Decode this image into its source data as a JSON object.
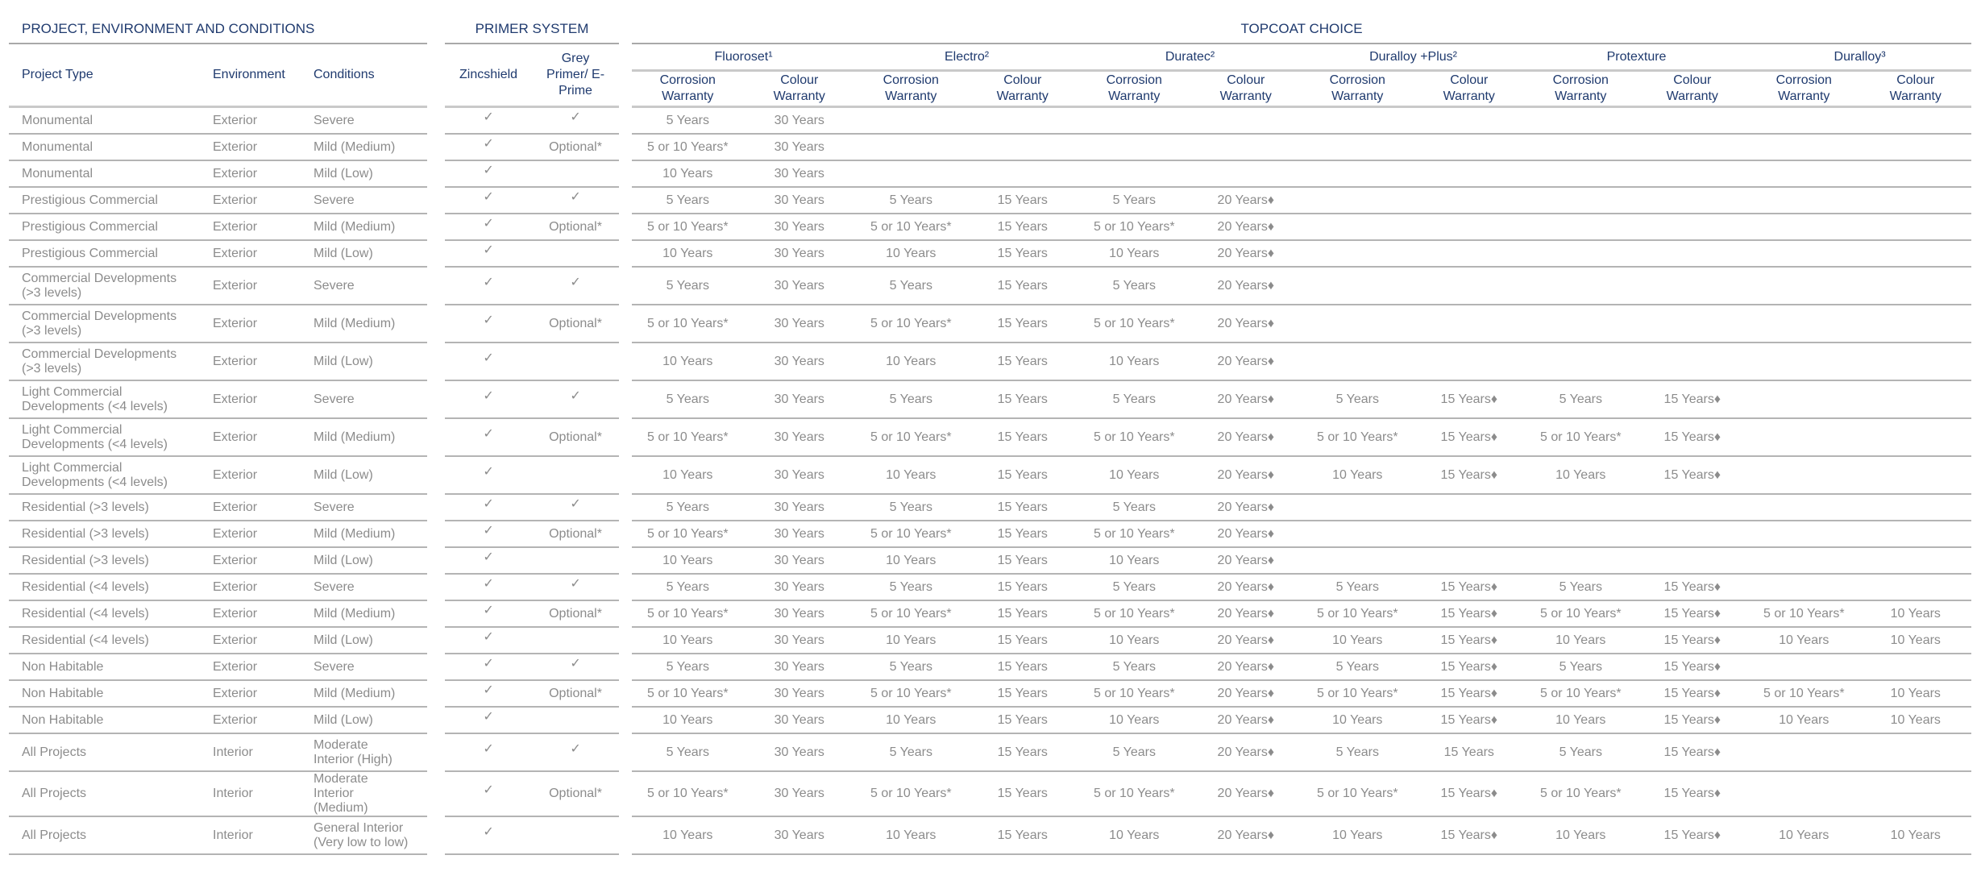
{
  "groups": {
    "project": "PROJECT, ENVIRONMENT AND CONDITIONS",
    "primer": "PRIMER SYSTEM",
    "topcoat": "TOPCOAT CHOICE"
  },
  "headers": {
    "project_type": "Project Type",
    "environment": "Environment",
    "conditions": "Conditions",
    "zincshield": "Zincshield",
    "grey_primer": "Grey Primer/ E-Prime",
    "corrosion": "Corrosion Warranty",
    "colour": "Colour Warranty"
  },
  "products": [
    "Fluoroset¹",
    "Electro²",
    "Duratec²",
    "Duralloy +Plus²",
    "Protexture",
    "Duralloy³"
  ],
  "colors": {
    "header": "#1f3a6e",
    "body": "#8c8c8c",
    "rule": "#b4b4b4"
  },
  "rows": [
    {
      "lines": 1,
      "cells": [
        "Monumental",
        "Exterior",
        "Severe",
        "✓",
        "✓",
        "5 Years",
        "30 Years",
        "",
        "",
        "",
        "",
        "",
        "",
        "",
        "",
        "",
        ""
      ]
    },
    {
      "lines": 1,
      "cells": [
        "Monumental",
        "Exterior",
        "Mild (Medium)",
        "✓",
        "Optional*",
        "5 or 10 Years*",
        "30 Years",
        "",
        "",
        "",
        "",
        "",
        "",
        "",
        "",
        "",
        ""
      ]
    },
    {
      "lines": 1,
      "cells": [
        "Monumental",
        "Exterior",
        "Mild (Low)",
        "✓",
        "",
        "10 Years",
        "30 Years",
        "",
        "",
        "",
        "",
        "",
        "",
        "",
        "",
        "",
        ""
      ]
    },
    {
      "lines": 1,
      "cells": [
        "Prestigious Commercial",
        "Exterior",
        "Severe",
        "✓",
        "✓",
        "5 Years",
        "30 Years",
        "5 Years",
        "15 Years",
        "5 Years",
        "20 Years♦",
        "",
        "",
        "",
        "",
        "",
        ""
      ]
    },
    {
      "lines": 1,
      "cells": [
        "Prestigious Commercial",
        "Exterior",
        "Mild (Medium)",
        "✓",
        "Optional*",
        "5 or 10 Years*",
        "30 Years",
        "5 or 10 Years*",
        "15 Years",
        "5 or 10 Years*",
        "20 Years♦",
        "",
        "",
        "",
        "",
        "",
        ""
      ]
    },
    {
      "lines": 1,
      "cells": [
        "Prestigious Commercial",
        "Exterior",
        "Mild (Low)",
        "✓",
        "",
        "10 Years",
        "30 Years",
        "10 Years",
        "15 Years",
        "10 Years",
        "20 Years♦",
        "",
        "",
        "",
        "",
        "",
        ""
      ]
    },
    {
      "lines": 2,
      "cells": [
        "Commercial Developments (>3 levels)",
        "Exterior",
        "Severe",
        "✓",
        "✓",
        "5 Years",
        "30 Years",
        "5 Years",
        "15 Years",
        "5 Years",
        "20 Years♦",
        "",
        "",
        "",
        "",
        "",
        ""
      ]
    },
    {
      "lines": 2,
      "cells": [
        "Commercial Developments (>3 levels)",
        "Exterior",
        "Mild (Medium)",
        "✓",
        "Optional*",
        "5 or 10 Years*",
        "30 Years",
        "5 or 10 Years*",
        "15 Years",
        "5 or 10 Years*",
        "20 Years♦",
        "",
        "",
        "",
        "",
        "",
        ""
      ]
    },
    {
      "lines": 2,
      "cells": [
        "Commercial Developments (>3 levels)",
        "Exterior",
        "Mild (Low)",
        "✓",
        "",
        "10 Years",
        "30 Years",
        "10 Years",
        "15 Years",
        "10 Years",
        "20 Years♦",
        "",
        "",
        "",
        "",
        "",
        ""
      ]
    },
    {
      "lines": 2,
      "cells": [
        "Light Commercial Developments (<4 levels)",
        "Exterior",
        "Severe",
        "✓",
        "✓",
        "5 Years",
        "30 Years",
        "5 Years",
        "15 Years",
        "5 Years",
        "20 Years♦",
        "5 Years",
        "15 Years♦",
        "5 Years",
        "15 Years♦",
        "",
        ""
      ]
    },
    {
      "lines": 2,
      "cells": [
        "Light Commercial Developments (<4 levels)",
        "Exterior",
        "Mild (Medium)",
        "✓",
        "Optional*",
        "5 or 10 Years*",
        "30 Years",
        "5 or 10 Years*",
        "15 Years",
        "5 or 10 Years*",
        "20 Years♦",
        "5 or 10 Years*",
        "15 Years♦",
        "5 or 10 Years*",
        "15 Years♦",
        "",
        ""
      ]
    },
    {
      "lines": 2,
      "cells": [
        "Light Commercial Developments (<4 levels)",
        "Exterior",
        "Mild (Low)",
        "✓",
        "",
        "10 Years",
        "30 Years",
        "10 Years",
        "15 Years",
        "10 Years",
        "20 Years♦",
        "10 Years",
        "15 Years♦",
        "10 Years",
        "15 Years♦",
        "",
        ""
      ]
    },
    {
      "lines": 1,
      "cells": [
        "Residential (>3 levels)",
        "Exterior",
        "Severe",
        "✓",
        "✓",
        "5 Years",
        "30 Years",
        "5 Years",
        "15 Years",
        "5 Years",
        "20 Years♦",
        "",
        "",
        "",
        "",
        "",
        ""
      ]
    },
    {
      "lines": 1,
      "cells": [
        "Residential (>3 levels)",
        "Exterior",
        "Mild (Medium)",
        "✓",
        "Optional*",
        "5 or 10 Years*",
        "30 Years",
        "5 or 10 Years*",
        "15 Years",
        "5 or 10 Years*",
        "20 Years♦",
        "",
        "",
        "",
        "",
        "",
        ""
      ]
    },
    {
      "lines": 1,
      "cells": [
        "Residential (>3 levels)",
        "Exterior",
        "Mild (Low)",
        "✓",
        "",
        "10 Years",
        "30 Years",
        "10 Years",
        "15 Years",
        "10 Years",
        "20 Years♦",
        "",
        "",
        "",
        "",
        "",
        ""
      ]
    },
    {
      "lines": 1,
      "cells": [
        "Residential (<4 levels)",
        "Exterior",
        "Severe",
        "✓",
        "✓",
        "5 Years",
        "30 Years",
        "5 Years",
        "15 Years",
        "5 Years",
        "20 Years♦",
        "5 Years",
        "15 Years♦",
        "5 Years",
        "15 Years♦",
        "",
        ""
      ]
    },
    {
      "lines": 1,
      "cells": [
        "Residential (<4 levels)",
        "Exterior",
        "Mild (Medium)",
        "✓",
        "Optional*",
        "5 or 10 Years*",
        "30 Years",
        "5 or 10 Years*",
        "15 Years",
        "5 or 10 Years*",
        "20 Years♦",
        "5 or 10 Years*",
        "15 Years♦",
        "5 or 10 Years*",
        "15 Years♦",
        "5 or 10 Years*",
        "10 Years"
      ]
    },
    {
      "lines": 1,
      "cells": [
        "Residential (<4 levels)",
        "Exterior",
        "Mild (Low)",
        "✓",
        "",
        "10 Years",
        "30 Years",
        "10 Years",
        "15 Years",
        "10 Years",
        "20 Years♦",
        "10 Years",
        "15 Years♦",
        "10 Years",
        "15 Years♦",
        "10 Years",
        "10 Years"
      ]
    },
    {
      "lines": 1,
      "cells": [
        "Non Habitable",
        "Exterior",
        "Severe",
        "✓",
        "✓",
        "5 Years",
        "30 Years",
        "5 Years",
        "15 Years",
        "5 Years",
        "20 Years♦",
        "5 Years",
        "15 Years♦",
        "5 Years",
        "15 Years♦",
        "",
        ""
      ]
    },
    {
      "lines": 1,
      "cells": [
        "Non Habitable",
        "Exterior",
        "Mild (Medium)",
        "✓",
        "Optional*",
        "5 or 10 Years*",
        "30 Years",
        "5 or 10 Years*",
        "15 Years",
        "5 or 10 Years*",
        "20 Years♦",
        "5 or 10 Years*",
        "15 Years♦",
        "5 or 10 Years*",
        "15 Years♦",
        "5 or 10 Years*",
        "10 Years"
      ]
    },
    {
      "lines": 1,
      "cells": [
        "Non Habitable",
        "Exterior",
        "Mild (Low)",
        "✓",
        "",
        "10 Years",
        "30 Years",
        "10 Years",
        "15 Years",
        "10 Years",
        "20 Years♦",
        "10 Years",
        "15 Years♦",
        "10 Years",
        "15 Years♦",
        "10 Years",
        "10 Years"
      ]
    },
    {
      "lines": 2,
      "cells": [
        "All Projects",
        "Interior",
        "Moderate Interior (High)",
        "✓",
        "✓",
        "5 Years",
        "30 Years",
        "5 Years",
        "15 Years",
        "5 Years",
        "20 Years♦",
        "5 Years",
        "15 Years",
        "5 Years",
        "15 Years♦",
        "",
        ""
      ]
    },
    {
      "lines": 2,
      "cells": [
        "All Projects",
        "Interior",
        "Moderate Interior (Medium)",
        "✓",
        "Optional*",
        "5 or 10 Years*",
        "30 Years",
        "5 or 10 Years*",
        "15 Years",
        "5 or 10 Years*",
        "20 Years♦",
        "5 or 10 Years*",
        "15 Years♦",
        "5 or 10 Years*",
        "15 Years♦",
        "",
        ""
      ]
    },
    {
      "lines": 2,
      "cells": [
        "All Projects",
        "Interior",
        "General Interior (Very low to low)",
        "✓",
        "",
        "10 Years",
        "30 Years",
        "10 Years",
        "15 Years",
        "10 Years",
        "20 Years♦",
        "10 Years",
        "15 Years♦",
        "10 Years",
        "15 Years♦",
        "10 Years",
        "10 Years"
      ]
    }
  ]
}
